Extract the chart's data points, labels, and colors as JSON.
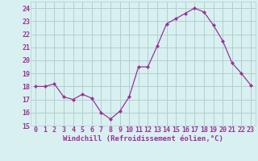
{
  "x": [
    0,
    1,
    2,
    3,
    4,
    5,
    6,
    7,
    8,
    9,
    10,
    11,
    12,
    13,
    14,
    15,
    16,
    17,
    18,
    19,
    20,
    21,
    22,
    23
  ],
  "y": [
    18,
    18,
    18.2,
    17.2,
    17,
    17.4,
    17.1,
    16,
    15.5,
    16.1,
    17.2,
    19.5,
    19.5,
    21.1,
    22.8,
    23.2,
    23.6,
    24,
    23.7,
    22.7,
    21.5,
    19.8,
    19,
    18.1
  ],
  "line_color": "#993399",
  "marker": "D",
  "marker_size": 2,
  "bg_color": "#d9f0f0",
  "grid_color": "#b0cfcf",
  "xlabel": "Windchill (Refroidissement éolien,°C)",
  "xlabel_color": "#993399",
  "xticks": [
    0,
    1,
    2,
    3,
    4,
    5,
    6,
    7,
    8,
    9,
    10,
    11,
    12,
    13,
    14,
    15,
    16,
    17,
    18,
    19,
    20,
    21,
    22,
    23
  ],
  "yticks": [
    15,
    16,
    17,
    18,
    19,
    20,
    21,
    22,
    23,
    24
  ],
  "xlim": [
    -0.5,
    23.5
  ],
  "ylim": [
    15,
    24.5
  ],
  "tick_label_color": "#993399",
  "tick_label_fontsize": 6.0,
  "xlabel_fontsize": 6.5
}
